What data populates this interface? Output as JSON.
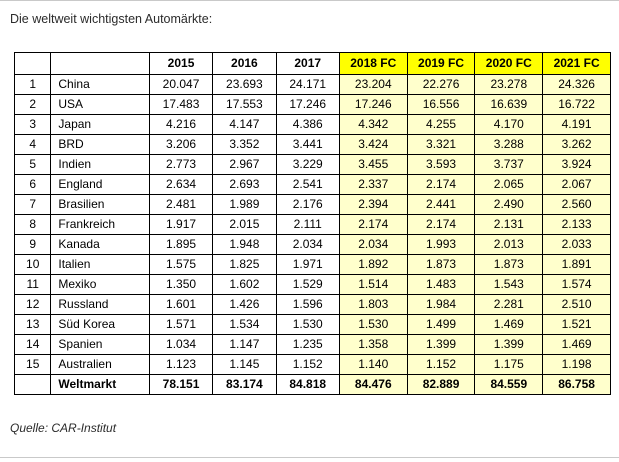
{
  "title": "Die weltweit wichtigsten Automärkte:",
  "source": "Quelle: CAR-Institut",
  "colors": {
    "forecast_header_bg": "#ffff00",
    "forecast_cell_bg": "#ffffcc",
    "border": "#000000"
  },
  "table": {
    "headers": [
      "",
      "",
      "2015",
      "2016",
      "2017",
      "2018 FC",
      "2019 FC",
      "2020 FC",
      "2021 FC"
    ],
    "rows": [
      [
        "1",
        "China",
        "20.047",
        "23.693",
        "24.171",
        "23.204",
        "22.276",
        "23.278",
        "24.326"
      ],
      [
        "2",
        "USA",
        "17.483",
        "17.553",
        "17.246",
        "17.246",
        "16.556",
        "16.639",
        "16.722"
      ],
      [
        "3",
        "Japan",
        "4.216",
        "4.147",
        "4.386",
        "4.342",
        "4.255",
        "4.170",
        "4.191"
      ],
      [
        "4",
        "BRD",
        "3.206",
        "3.352",
        "3.441",
        "3.424",
        "3.321",
        "3.288",
        "3.262"
      ],
      [
        "5",
        "Indien",
        "2.773",
        "2.967",
        "3.229",
        "3.455",
        "3.593",
        "3.737",
        "3.924"
      ],
      [
        "6",
        "England",
        "2.634",
        "2.693",
        "2.541",
        "2.337",
        "2.174",
        "2.065",
        "2.067"
      ],
      [
        "7",
        "Brasilien",
        "2.481",
        "1.989",
        "2.176",
        "2.394",
        "2.441",
        "2.490",
        "2.560"
      ],
      [
        "8",
        "Frankreich",
        "1.917",
        "2.015",
        "2.111",
        "2.174",
        "2.174",
        "2.131",
        "2.133"
      ],
      [
        "9",
        "Kanada",
        "1.895",
        "1.948",
        "2.034",
        "2.034",
        "1.993",
        "2.013",
        "2.033"
      ],
      [
        "10",
        "Italien",
        "1.575",
        "1.825",
        "1.971",
        "1.892",
        "1.873",
        "1.873",
        "1.891"
      ],
      [
        "11",
        "Mexiko",
        "1.350",
        "1.602",
        "1.529",
        "1.514",
        "1.483",
        "1.543",
        "1.574"
      ],
      [
        "12",
        "Russland",
        "1.601",
        "1.426",
        "1.596",
        "1.803",
        "1.984",
        "2.281",
        "2.510"
      ],
      [
        "13",
        "Süd Korea",
        "1.571",
        "1.534",
        "1.530",
        "1.530",
        "1.499",
        "1.469",
        "1.521"
      ],
      [
        "14",
        "Spanien",
        "1.034",
        "1.147",
        "1.235",
        "1.358",
        "1.399",
        "1.399",
        "1.469"
      ],
      [
        "15",
        "Australien",
        "1.123",
        "1.145",
        "1.152",
        "1.140",
        "1.152",
        "1.175",
        "1.198"
      ]
    ],
    "total_row": [
      "",
      "Weltmarkt",
      "78.151",
      "83.174",
      "84.818",
      "84.476",
      "82.889",
      "84.559",
      "86.758"
    ]
  }
}
